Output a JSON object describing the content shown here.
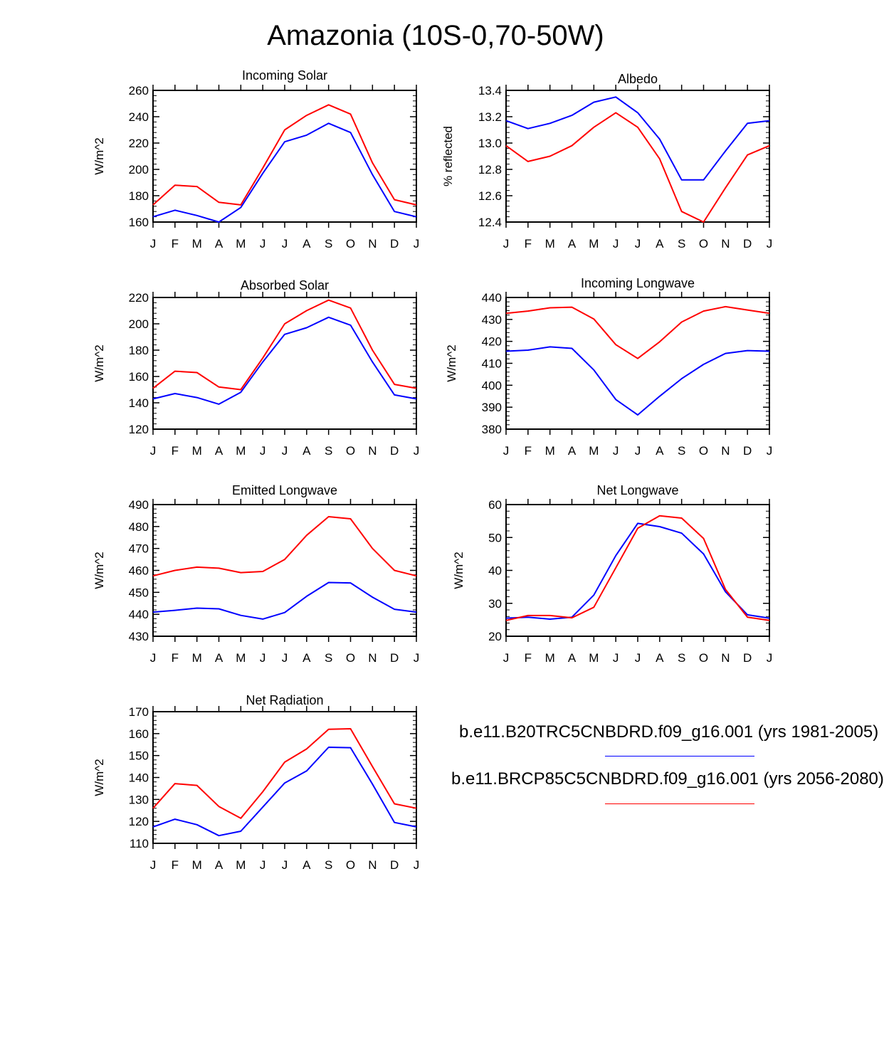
{
  "title": "Amazonia (10S-0,70-50W)",
  "colors": {
    "series_1": "#0000ff",
    "series_2": "#ff0000",
    "axis": "#000000"
  },
  "legend": [
    {
      "label": "b.e11.B20TRC5CNBDRD.f09_g16.001 (yrs 1981-2005)",
      "color": "#0000ff"
    },
    {
      "label": "b.e11.BRCP85C5CNBDRD.f09_g16.001 (yrs 2056-2080)",
      "color": "#ff0000"
    }
  ],
  "chart_data": [
    {
      "type": "line",
      "title": "Incoming Solar",
      "ylabel": "W/m^2",
      "ylim": [
        160,
        260
      ],
      "yticks": [
        "160",
        "180",
        "200",
        "220",
        "240",
        "260"
      ],
      "categories": [
        "J",
        "F",
        "M",
        "A",
        "M",
        "J",
        "J",
        "A",
        "S",
        "O",
        "N",
        "D",
        "J"
      ],
      "series": [
        {
          "name": "b.e11.B20TRC5CNBDRD.f09_g16.001 (yrs 1981-2005)",
          "color": "#0000ff",
          "values": [
            164,
            169,
            165,
            160,
            171,
            197,
            221,
            226,
            235,
            228,
            196,
            168,
            164
          ]
        },
        {
          "name": "b.e11.BRCP85C5CNBDRD.f09_g16.001 (yrs 2056-2080)",
          "color": "#ff0000",
          "values": [
            173,
            188,
            187,
            175,
            173,
            201,
            230,
            241,
            249,
            242,
            205,
            177,
            173
          ]
        }
      ]
    },
    {
      "type": "line",
      "title": "Albedo",
      "ylabel": "% reflected",
      "ylim": [
        12.4,
        13.4
      ],
      "yticks": [
        "12.4",
        "12.6",
        "12.8",
        "13.0",
        "13.2",
        "13.4"
      ],
      "categories": [
        "J",
        "F",
        "M",
        "A",
        "M",
        "J",
        "J",
        "A",
        "S",
        "O",
        "N",
        "D",
        "J"
      ],
      "series": [
        {
          "name": "b.e11.B20TRC5CNBDRD.f09_g16.001 (yrs 1981-2005)",
          "color": "#0000ff",
          "values": [
            13.17,
            13.11,
            13.15,
            13.21,
            13.31,
            13.35,
            13.23,
            13.03,
            12.72,
            12.72,
            12.94,
            13.15,
            13.17
          ]
        },
        {
          "name": "b.e11.BRCP85C5CNBDRD.f09_g16.001 (yrs 2056-2080)",
          "color": "#ff0000",
          "values": [
            12.98,
            12.86,
            12.9,
            12.98,
            13.12,
            13.23,
            13.12,
            12.88,
            12.48,
            12.4,
            12.66,
            12.91,
            12.98
          ]
        }
      ]
    },
    {
      "type": "line",
      "title": "Absorbed Solar",
      "ylabel": "W/m^2",
      "ylim": [
        120,
        220
      ],
      "yticks": [
        "120",
        "140",
        "160",
        "180",
        "200",
        "220"
      ],
      "categories": [
        "J",
        "F",
        "M",
        "A",
        "M",
        "J",
        "J",
        "A",
        "S",
        "O",
        "N",
        "D",
        "J"
      ],
      "series": [
        {
          "name": "b.e11.B20TRC5CNBDRD.f09_g16.001 (yrs 1981-2005)",
          "color": "#0000ff",
          "values": [
            143,
            147,
            144,
            139,
            148,
            171,
            192,
            197,
            205,
            199,
            171,
            146,
            143
          ]
        },
        {
          "name": "b.e11.BRCP85C5CNBDRD.f09_g16.001 (yrs 2056-2080)",
          "color": "#ff0000",
          "values": [
            151,
            164,
            163,
            152,
            150,
            174,
            200,
            210,
            218,
            212,
            180,
            154,
            151
          ]
        }
      ]
    },
    {
      "type": "line",
      "title": "Incoming Longwave",
      "ylabel": "W/m^2",
      "ylim": [
        380,
        440
      ],
      "yticks": [
        "380",
        "390",
        "400",
        "410",
        "420",
        "430",
        "440"
      ],
      "categories": [
        "J",
        "F",
        "M",
        "A",
        "M",
        "J",
        "J",
        "A",
        "S",
        "O",
        "N",
        "D",
        "J"
      ],
      "series": [
        {
          "name": "b.e11.B20TRC5CNBDRD.f09_g16.001 (yrs 1981-2005)",
          "color": "#0000ff",
          "values": [
            415.5,
            416,
            417.5,
            416.8,
            407,
            393.5,
            386.5,
            395,
            403,
            409.5,
            414.5,
            415.8,
            415.5
          ]
        },
        {
          "name": "b.e11.BRCP85C5CNBDRD.f09_g16.001 (yrs 2056-2080)",
          "color": "#ff0000",
          "values": [
            432.8,
            433.8,
            435.3,
            435.6,
            430.2,
            418.5,
            412.2,
            419.8,
            428.8,
            433.8,
            435.8,
            434.3,
            432.8
          ]
        }
      ]
    },
    {
      "type": "line",
      "title": "Emitted Longwave",
      "ylabel": "W/m^2",
      "ylim": [
        430,
        490
      ],
      "yticks": [
        "430",
        "440",
        "450",
        "460",
        "470",
        "480",
        "490"
      ],
      "categories": [
        "J",
        "F",
        "M",
        "A",
        "M",
        "J",
        "J",
        "A",
        "S",
        "O",
        "N",
        "D",
        "J"
      ],
      "series": [
        {
          "name": "b.e11.B20TRC5CNBDRD.f09_g16.001 (yrs 1981-2005)",
          "color": "#0000ff",
          "values": [
            441,
            441.8,
            442.8,
            442.5,
            439.5,
            437.8,
            440.8,
            448.2,
            454.5,
            454.3,
            447.8,
            442.3,
            441
          ]
        },
        {
          "name": "b.e11.BRCP85C5CNBDRD.f09_g16.001 (yrs 2056-2080)",
          "color": "#ff0000",
          "values": [
            457.5,
            460,
            461.5,
            461,
            459,
            459.5,
            465,
            476,
            484.5,
            483.5,
            470,
            460,
            457.5
          ]
        }
      ]
    },
    {
      "type": "line",
      "title": "Net Longwave",
      "ylabel": "W/m^2",
      "ylim": [
        20,
        60
      ],
      "yticks": [
        "20",
        "30",
        "40",
        "50",
        "60"
      ],
      "categories": [
        "J",
        "F",
        "M",
        "A",
        "M",
        "J",
        "J",
        "A",
        "S",
        "O",
        "N",
        "D",
        "J"
      ],
      "series": [
        {
          "name": "b.e11.B20TRC5CNBDRD.f09_g16.001 (yrs 1981-2005)",
          "color": "#0000ff",
          "values": [
            25.5,
            25.8,
            25.2,
            25.8,
            32.5,
            44.5,
            54.3,
            53.3,
            51.3,
            45.0,
            33.5,
            26.5,
            25.5
          ]
        },
        {
          "name": "b.e11.BRCP85C5CNBDRD.f09_g16.001 (yrs 2056-2080)",
          "color": "#ff0000",
          "values": [
            24.8,
            26.3,
            26.3,
            25.6,
            28.8,
            40.8,
            52.8,
            56.6,
            55.9,
            49.7,
            34.2,
            25.8,
            24.8
          ]
        }
      ]
    },
    {
      "type": "line",
      "title": "Net Radiation",
      "ylabel": "W/m^2",
      "ylim": [
        110,
        170
      ],
      "yticks": [
        "110",
        "120",
        "130",
        "140",
        "150",
        "160",
        "170"
      ],
      "categories": [
        "J",
        "F",
        "M",
        "A",
        "M",
        "J",
        "J",
        "A",
        "S",
        "O",
        "N",
        "D",
        "J"
      ],
      "series": [
        {
          "name": "b.e11.B20TRC5CNBDRD.f09_g16.001 (yrs 1981-2005)",
          "color": "#0000ff",
          "values": [
            117.5,
            121,
            118.5,
            113.5,
            115.5,
            126.5,
            137.5,
            143,
            153.8,
            153.6,
            137,
            119.5,
            117.5
          ]
        },
        {
          "name": "b.e11.BRCP85C5CNBDRD.f09_g16.001 (yrs 2056-2080)",
          "color": "#ff0000",
          "values": [
            126,
            137.2,
            136.4,
            126.8,
            121.4,
            133.5,
            147,
            153,
            162,
            162.2,
            145,
            128,
            126
          ]
        }
      ]
    }
  ]
}
